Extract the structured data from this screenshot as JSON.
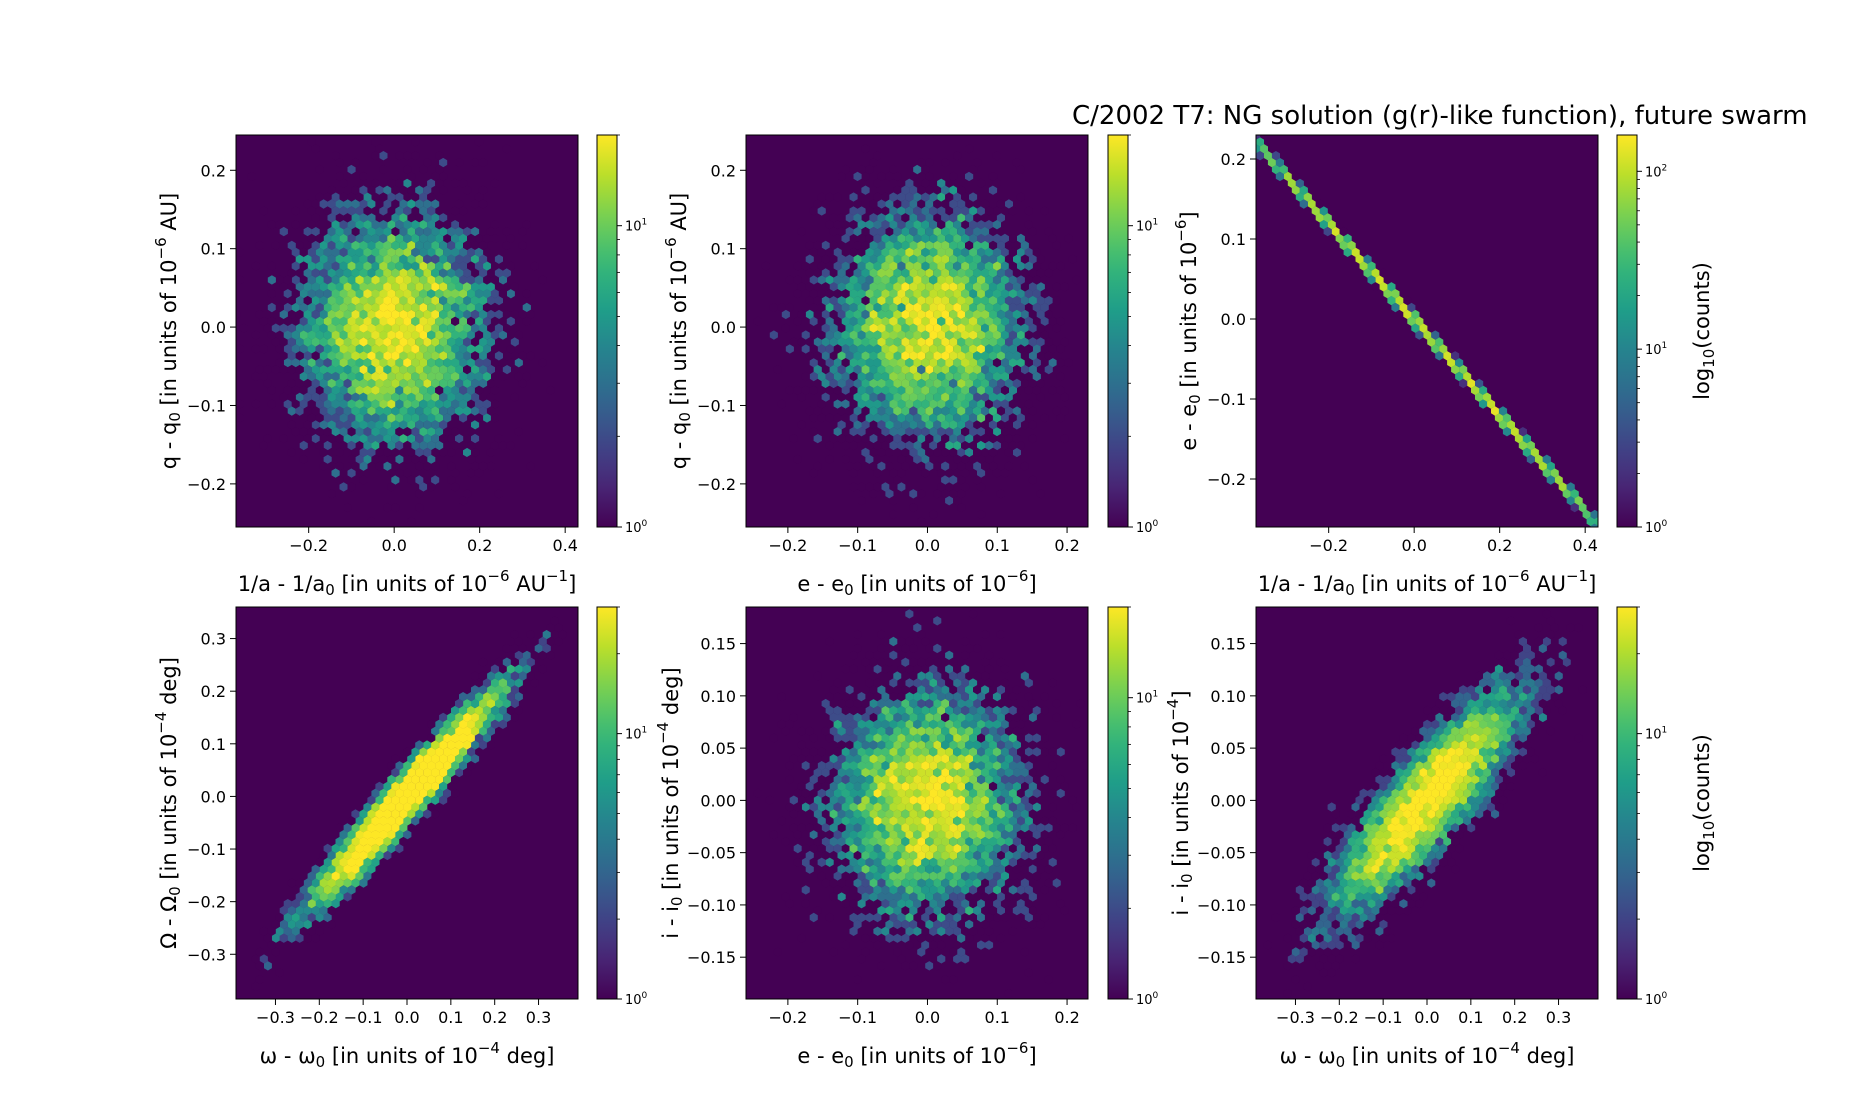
{
  "title": "C/2002 T7:  NG solution (g(r)-like function), future swarm",
  "colors": {
    "colormap": "viridis",
    "viridis_stops": [
      "#440154",
      "#482878",
      "#3e4989",
      "#31688e",
      "#26828e",
      "#1f9e89",
      "#35b779",
      "#6ece58",
      "#b5de2b",
      "#fde725"
    ],
    "background": "#440154"
  },
  "chart_data": [
    {
      "type": "hexbin",
      "panel": "top-left",
      "xlabel": {
        "base": "1/a - 1/a",
        "sub": "0",
        "rest": " [in units of 10",
        "sup": "−6",
        "tail": " AU",
        "sup2": "−1",
        "end": "]"
      },
      "ylabel": {
        "base": "q - q",
        "sub": "0",
        "rest": " [in units of 10",
        "sup": "−6",
        "tail": " AU]"
      },
      "xlim": [
        -0.37,
        0.43
      ],
      "ylim": [
        -0.255,
        0.245
      ],
      "xticks": [
        -0.2,
        0.0,
        0.2,
        0.4
      ],
      "xtick_labels": [
        "−0.2",
        "0.0",
        "0.2",
        "0.4"
      ],
      "yticks": [
        -0.2,
        -0.1,
        0.0,
        0.1,
        0.2
      ],
      "ytick_labels": [
        "−0.2",
        "−0.1",
        "0.0",
        "0.1",
        "0.2"
      ],
      "distribution": {
        "mean": [
          0.0,
          0.0
        ],
        "sigma": [
          0.11,
          0.075
        ],
        "correlation": 0.0,
        "seed": 11
      },
      "colorbar": {
        "scale": "log",
        "range": [
          1,
          20
        ],
        "tick_labels": [
          {
            "base": "10",
            "sup": "0",
            "value": 1
          },
          {
            "base": "10",
            "sup": "1",
            "value": 10
          }
        ],
        "label": null
      }
    },
    {
      "type": "hexbin",
      "panel": "top-center",
      "xlabel": {
        "base": "e - e",
        "sub": "0",
        "rest": " [in units of 10",
        "sup": "−6",
        "tail": "]"
      },
      "ylabel": {
        "base": "q - q",
        "sub": "0",
        "rest": " [in units of 10",
        "sup": "−6",
        "tail": " AU]"
      },
      "xlim": [
        -0.26,
        0.23
      ],
      "ylim": [
        -0.255,
        0.245
      ],
      "xticks": [
        -0.2,
        -0.1,
        0.0,
        0.1,
        0.2
      ],
      "xtick_labels": [
        "−0.2",
        "−0.1",
        "0.0",
        "0.1",
        "0.2"
      ],
      "yticks": [
        -0.2,
        -0.1,
        0.0,
        0.1,
        0.2
      ],
      "ytick_labels": [
        "−0.2",
        "−0.1",
        "0.0",
        "0.1",
        "0.2"
      ],
      "distribution": {
        "mean": [
          0.0,
          0.0
        ],
        "sigma": [
          0.07,
          0.075
        ],
        "correlation": 0.0,
        "seed": 23
      },
      "colorbar": {
        "scale": "log",
        "range": [
          1,
          20
        ],
        "tick_labels": [
          {
            "base": "10",
            "sup": "0",
            "value": 1
          },
          {
            "base": "10",
            "sup": "1",
            "value": 10
          }
        ],
        "label": null
      }
    },
    {
      "type": "hexbin",
      "panel": "top-right",
      "xlabel": {
        "base": "1/a - 1/a",
        "sub": "0",
        "rest": " [in units of 10",
        "sup": "−6",
        "tail": " AU",
        "sup2": "−1",
        "end": "]"
      },
      "ylabel": {
        "base": "e - e",
        "sub": "0",
        "rest": " [in units of 10",
        "sup": "−6",
        "tail": "]"
      },
      "xlim": [
        -0.37,
        0.43
      ],
      "ylim": [
        -0.26,
        0.23
      ],
      "xticks": [
        -0.2,
        0.0,
        0.2,
        0.4
      ],
      "xtick_labels": [
        "−0.2",
        "0.0",
        "0.2",
        "0.4"
      ],
      "yticks": [
        -0.2,
        -0.1,
        0.0,
        0.1,
        0.2
      ],
      "ytick_labels": [
        "−0.2",
        "−0.1",
        "0.0",
        "0.1",
        "0.2"
      ],
      "distribution": {
        "mean": [
          0.0,
          0.0
        ],
        "sigma": [
          0.11,
          0.065
        ],
        "correlation": -0.9995,
        "seed": 37,
        "line": {
          "x0": -0.36,
          "y0": 0.215,
          "x1": 0.4,
          "y1": -0.24
        }
      },
      "colorbar": {
        "scale": "log",
        "range": [
          1,
          160
        ],
        "tick_labels": [
          {
            "base": "10",
            "sup": "0",
            "value": 1
          },
          {
            "base": "10",
            "sup": "1",
            "value": 10
          },
          {
            "base": "10",
            "sup": "2",
            "value": 100
          }
        ],
        "label": {
          "base": "log",
          "sub": "10",
          "rest": "(counts)"
        }
      }
    },
    {
      "type": "hexbin",
      "panel": "bottom-left",
      "xlabel": {
        "base": "ω - ω",
        "sub": "0",
        "rest": " [in units of 10",
        "sup": "−4",
        "tail": " deg]"
      },
      "ylabel": {
        "base": "Ω - Ω",
        "sub": "0",
        "rest": " [in units of 10",
        "sup": "−4",
        "tail": " deg]"
      },
      "xlim": [
        -0.39,
        0.39
      ],
      "ylim": [
        -0.385,
        0.36
      ],
      "xticks": [
        -0.3,
        -0.2,
        -0.1,
        0.0,
        0.1,
        0.2,
        0.3
      ],
      "xtick_labels": [
        "−0.3",
        "−0.2",
        "−0.1",
        "0.0",
        "0.1",
        "0.2",
        "0.3"
      ],
      "yticks": [
        -0.3,
        -0.2,
        -0.1,
        0.0,
        0.1,
        0.2,
        0.3
      ],
      "ytick_labels": [
        "−0.3",
        "−0.2",
        "−0.1",
        "0.0",
        "0.1",
        "0.2",
        "0.3"
      ],
      "distribution": {
        "mean": [
          0.0,
          0.0
        ],
        "sigma": [
          0.11,
          0.105
        ],
        "correlation": 0.965,
        "seed": 51
      },
      "colorbar": {
        "scale": "log",
        "range": [
          1,
          30
        ],
        "tick_labels": [
          {
            "base": "10",
            "sup": "0",
            "value": 1
          },
          {
            "base": "10",
            "sup": "1",
            "value": 10
          }
        ],
        "label": null
      }
    },
    {
      "type": "hexbin",
      "panel": "bottom-center",
      "xlabel": {
        "base": "e - e",
        "sub": "0",
        "rest": " [in units of 10",
        "sup": "−6",
        "tail": "]"
      },
      "ylabel": {
        "base": "i - i",
        "sub": "0",
        "rest": " [in units of 10",
        "sup": "−4",
        "tail": " deg]"
      },
      "xlim": [
        -0.26,
        0.23
      ],
      "ylim": [
        -0.19,
        0.185
      ],
      "xticks": [
        -0.2,
        -0.1,
        0.0,
        0.1,
        0.2
      ],
      "xtick_labels": [
        "−0.2",
        "−0.1",
        "0.0",
        "0.1",
        "0.2"
      ],
      "yticks": [
        -0.15,
        -0.1,
        -0.05,
        0.0,
        0.05,
        0.1,
        0.15
      ],
      "ytick_labels": [
        "−0.15",
        "−0.10",
        "−0.05",
        "0.00",
        "0.05",
        "0.10",
        "0.15"
      ],
      "distribution": {
        "mean": [
          0.0,
          0.0
        ],
        "sigma": [
          0.07,
          0.055
        ],
        "correlation": 0.0,
        "seed": 67
      },
      "colorbar": {
        "scale": "log",
        "range": [
          1,
          20
        ],
        "tick_labels": [
          {
            "base": "10",
            "sup": "0",
            "value": 1
          },
          {
            "base": "10",
            "sup": "1",
            "value": 10
          }
        ],
        "label": null
      }
    },
    {
      "type": "hexbin",
      "panel": "bottom-right",
      "xlabel": {
        "base": "ω - ω",
        "sub": "0",
        "rest": " [in units of 10",
        "sup": "−4",
        "tail": " deg]"
      },
      "ylabel": {
        "base": "i - i",
        "sub": "0",
        "rest": " [in units of 10",
        "sup": "−4",
        "tail": "]"
      },
      "xlim": [
        -0.39,
        0.39
      ],
      "ylim": [
        -0.19,
        0.185
      ],
      "xticks": [
        -0.3,
        -0.2,
        -0.1,
        0.0,
        0.1,
        0.2,
        0.3
      ],
      "xtick_labels": [
        "−0.3",
        "−0.2",
        "−0.1",
        "0.0",
        "0.1",
        "0.2",
        "0.3"
      ],
      "yticks": [
        -0.15,
        -0.1,
        -0.05,
        0.0,
        0.05,
        0.1,
        0.15
      ],
      "ytick_labels": [
        "−0.15",
        "−0.10",
        "−0.05",
        "0.00",
        "0.05",
        "0.10",
        "0.15"
      ],
      "distribution": {
        "mean": [
          0.0,
          0.0
        ],
        "sigma": [
          0.11,
          0.055
        ],
        "correlation": 0.86,
        "seed": 83
      },
      "colorbar": {
        "scale": "log",
        "range": [
          1,
          30
        ],
        "tick_labels": [
          {
            "base": "10",
            "sup": "0",
            "value": 1
          },
          {
            "base": "10",
            "sup": "1",
            "value": 10
          }
        ],
        "label": {
          "base": "log",
          "sub": "10",
          "rest": "(counts)"
        }
      }
    }
  ]
}
